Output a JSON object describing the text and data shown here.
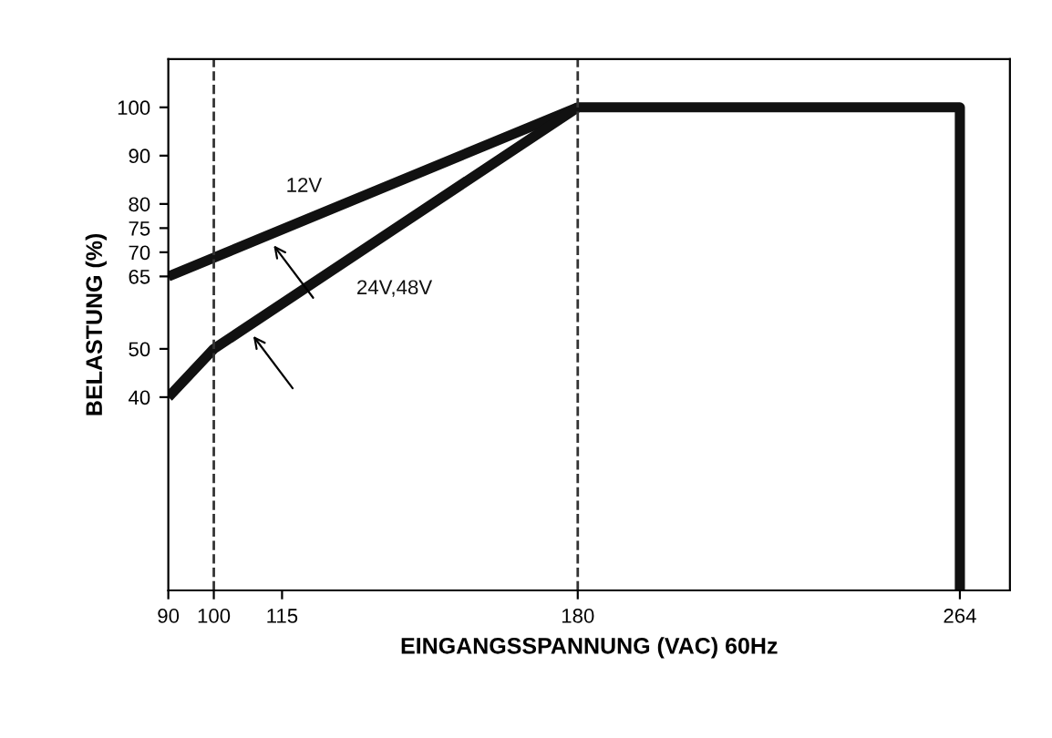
{
  "chart_data": {
    "type": "line",
    "xlabel": "EINGANGSSPANNUNG (VAC) 60Hz",
    "ylabel": "BELASTUNG (%)",
    "series": [
      {
        "name": "12V",
        "color": "#111111",
        "x": [
          90,
          180,
          264,
          264
        ],
        "values": [
          65,
          100,
          100,
          0
        ]
      },
      {
        "name": "24V,48V",
        "color": "#111111",
        "x": [
          90,
          100,
          180
        ],
        "values": [
          40,
          50,
          100
        ]
      }
    ],
    "xlim": [
      90,
      275
    ],
    "xticks": [
      90,
      100,
      115,
      180,
      264
    ],
    "ylim": [
      0,
      110
    ],
    "yticks": [
      40,
      50,
      65,
      70,
      75,
      80,
      90,
      100
    ],
    "ref_lines": [
      {
        "axis": "x",
        "value": 100,
        "line_style": "dashed",
        "color": "#333333"
      },
      {
        "axis": "x",
        "value": 180,
        "line_style": "dashed",
        "color": "#333333"
      }
    ],
    "grid": false,
    "legend": false,
    "marker": "none",
    "line_style": "solid"
  }
}
